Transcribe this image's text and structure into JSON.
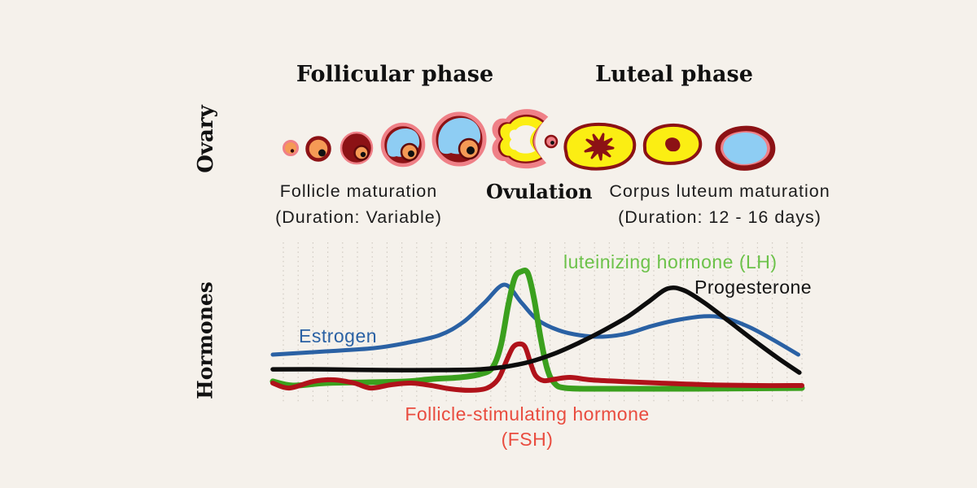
{
  "palette": {
    "background": "#f5f1eb",
    "dark_red": "#8c1215",
    "pink": "#ef8087",
    "orange": "#f59a55",
    "sky_blue": "#8ecdf3",
    "yellow": "#fbee13",
    "text_black": "#111111"
  },
  "phases": {
    "follicular": "Follicular phase",
    "luteal": "Luteal phase"
  },
  "row_labels": {
    "ovary": "Ovary",
    "hormones": "Hormones"
  },
  "ovary_row": {
    "follicle_caption": {
      "line1": "Follicle maturation",
      "line2": "(Duration: Variable)"
    },
    "ovulation_label": "Ovulation",
    "corpus_caption": {
      "line1": "Corpus luteum maturation",
      "line2": "(Duration: 12 - 16 days)"
    },
    "stage_icons": [
      "primordial-follicle-icon",
      "primary-follicle-icon",
      "secondary-follicle-icon",
      "early-antral-follicle-icon",
      "mature-follicle-icon",
      "ovulation-ruptured-follicle-icon",
      "released-egg-icon",
      "corpus-luteum-early-icon",
      "corpus-luteum-late-icon",
      "corpus-albicans-icon"
    ]
  },
  "chart_data": {
    "type": "line",
    "title": "",
    "xlabel": "",
    "ylabel": "",
    "x_range_description": "one menstrual cycle: follicular phase, ovulation spike (~mid chart), luteal phase; no numeric ticks shown",
    "y_range_description": "relative hormone level 0-100 (axis unlabeled in figure)",
    "grid": {
      "vertical_dotted": true,
      "line_count": 36
    },
    "legend_position": "labels placed next to curves",
    "series": [
      {
        "name": "Estrogen",
        "label": "Estrogen",
        "color": "#2a61a4",
        "label_color": "#2a61a4",
        "stroke_width": 5,
        "points": [
          [
            0,
            28.4
          ],
          [
            10,
            30.5
          ],
          [
            19,
            32.6
          ],
          [
            25,
            35.8
          ],
          [
            31.5,
            41
          ],
          [
            36,
            49.5
          ],
          [
            40,
            62
          ],
          [
            43.8,
            73.7
          ],
          [
            47,
            62
          ],
          [
            50,
            51
          ],
          [
            54,
            44.2
          ],
          [
            58,
            41
          ],
          [
            62.3,
            40
          ],
          [
            67,
            42.1
          ],
          [
            71.5,
            46.8
          ],
          [
            76,
            50.5
          ],
          [
            81.5,
            53.2
          ],
          [
            85.4,
            52.1
          ],
          [
            90,
            46.3
          ],
          [
            94.6,
            37.9
          ],
          [
            99.3,
            28.4
          ]
        ]
      },
      {
        "name": "Luteinizing hormone",
        "label": "luteinizing hormone (LH)",
        "color": "#3ba01e",
        "label_color": "#6cc24a",
        "stroke_width": 7,
        "points": [
          [
            0,
            11.1
          ],
          [
            3.8,
            8.4
          ],
          [
            10,
            10
          ],
          [
            17.7,
            10.5
          ],
          [
            25.4,
            11.1
          ],
          [
            30,
            12.6
          ],
          [
            35.4,
            13.7
          ],
          [
            39.2,
            15.8
          ],
          [
            41.5,
            20
          ],
          [
            43.1,
            34.2
          ],
          [
            44.5,
            60.5
          ],
          [
            45.7,
            77.9
          ],
          [
            46.9,
            82.1
          ],
          [
            48.2,
            81.1
          ],
          [
            49.4,
            64.2
          ],
          [
            50.6,
            39.5
          ],
          [
            51.8,
            20
          ],
          [
            53.1,
            10.5
          ],
          [
            55.4,
            6.8
          ],
          [
            63.8,
            6.3
          ],
          [
            79.2,
            6.3
          ],
          [
            100,
            6.8
          ]
        ]
      },
      {
        "name": "Follicle-stimulating hormone",
        "label": "Follicle-stimulating hormone (FSH)",
        "label_lines": [
          "Follicle-stimulating hormone",
          "(FSH)"
        ],
        "color": "#b0121a",
        "label_color": "#e94c3f",
        "stroke_width": 6,
        "points": [
          [
            0,
            10
          ],
          [
            3.1,
            6.8
          ],
          [
            7.7,
            11.1
          ],
          [
            11.5,
            12.1
          ],
          [
            15.4,
            10
          ],
          [
            18.5,
            6.8
          ],
          [
            22.3,
            8.9
          ],
          [
            26.2,
            10
          ],
          [
            30,
            8.4
          ],
          [
            33.4,
            6.3
          ],
          [
            37.4,
            5.3
          ],
          [
            40.5,
            6.8
          ],
          [
            42.6,
            12.6
          ],
          [
            44.2,
            24.7
          ],
          [
            45.4,
            33.2
          ],
          [
            46.6,
            35.3
          ],
          [
            47.7,
            33.2
          ],
          [
            48.8,
            22.1
          ],
          [
            49.7,
            14.7
          ],
          [
            51.2,
            11.6
          ],
          [
            53.4,
            12.6
          ],
          [
            56.2,
            13.7
          ],
          [
            60,
            12.1
          ],
          [
            65.4,
            11.1
          ],
          [
            73.1,
            10
          ],
          [
            82.3,
            8.9
          ],
          [
            91.5,
            8.4
          ],
          [
            100,
            8.4
          ]
        ]
      },
      {
        "name": "Progesterone",
        "label": "Progesterone",
        "color": "#0d0d0d",
        "label_color": "#141414",
        "stroke_width": 5.5,
        "points": [
          [
            0,
            18.9
          ],
          [
            10,
            18.9
          ],
          [
            20.8,
            18.4
          ],
          [
            31.5,
            18.4
          ],
          [
            39.2,
            18.9
          ],
          [
            43.8,
            20.5
          ],
          [
            48.5,
            23.7
          ],
          [
            53.1,
            28.9
          ],
          [
            57.7,
            35.8
          ],
          [
            62.3,
            43.7
          ],
          [
            66.9,
            52.6
          ],
          [
            70.8,
            62.1
          ],
          [
            74.6,
            71.1
          ],
          [
            77.7,
            70
          ],
          [
            81.5,
            62.1
          ],
          [
            86.2,
            50
          ],
          [
            90.8,
            37.9
          ],
          [
            95.4,
            26.3
          ],
          [
            99.5,
            16.8
          ]
        ]
      }
    ]
  }
}
